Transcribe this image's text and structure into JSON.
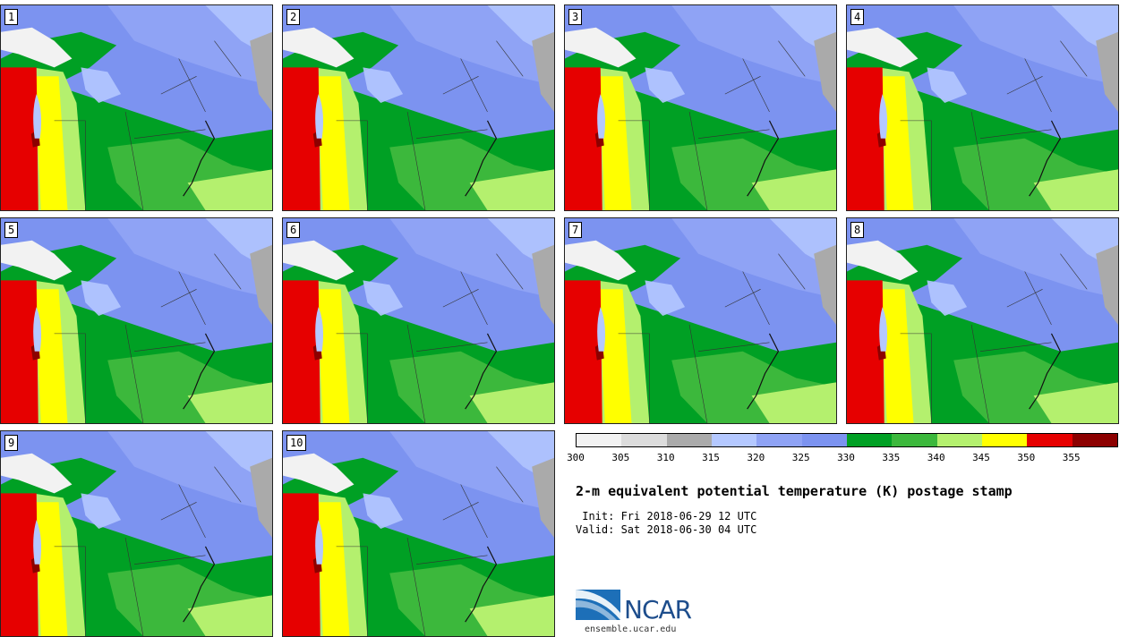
{
  "members": [
    "1",
    "2",
    "3",
    "4",
    "5",
    "6",
    "7",
    "8",
    "9",
    "10"
  ],
  "colorbar": {
    "colors": [
      "#f2f2f2",
      "#dcdcdc",
      "#aaaaaa",
      "#b4c8ff",
      "#8fa3f5",
      "#7c93f0",
      "#00a024",
      "#3cb83c",
      "#b4f06e",
      "#ffff00",
      "#e60000",
      "#8c0000"
    ],
    "ticks": [
      "300",
      "305",
      "310",
      "315",
      "320",
      "325",
      "330",
      "335",
      "340",
      "345",
      "350",
      "355"
    ]
  },
  "title": "2-m equivalent potential temperature (K) postage stamp",
  "init": " Init: Fri 2018-06-29 12 UTC",
  "valid": "Valid: Sat 2018-06-30 04 UTC",
  "logo": {
    "text": "NCAR",
    "site": "ensemble.ucar.edu",
    "color": "#1d4d8c"
  }
}
